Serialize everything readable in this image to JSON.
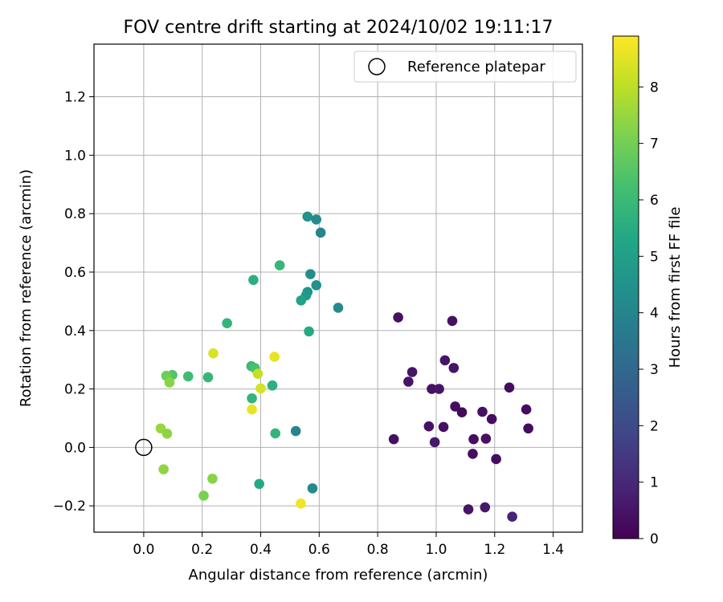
{
  "chart_data": {
    "type": "scatter",
    "title": "FOV centre drift starting at 2024/10/02 19:11:17",
    "xlabel": "Angular distance from reference (arcmin)",
    "ylabel": "Rotation from reference (arcmin)",
    "xlim": [
      -0.17,
      1.5
    ],
    "ylim": [
      -0.29,
      1.38
    ],
    "xticks": [
      0.0,
      0.2,
      0.4,
      0.6,
      0.8,
      1.0,
      1.2,
      1.4
    ],
    "xtick_labels": [
      "0.0",
      "0.2",
      "0.4",
      "0.6",
      "0.8",
      "1.0",
      "1.2",
      "1.4"
    ],
    "yticks": [
      -0.2,
      0.0,
      0.2,
      0.4,
      0.6,
      0.8,
      1.0,
      1.2
    ],
    "ytick_labels": [
      "−0.2",
      "0.0",
      "0.2",
      "0.4",
      "0.6",
      "0.8",
      "1.0",
      "1.2"
    ],
    "grid": true,
    "legend": {
      "placement": "top-right",
      "entries": [
        "Reference platepar"
      ]
    },
    "reference_point": {
      "x": 0.0,
      "y": 0.0,
      "label": "Reference platepar"
    },
    "colorbar": {
      "label": "Hours from first FF file",
      "colormap": "viridis",
      "range": [
        0,
        8.9
      ],
      "ticks": [
        0,
        1,
        2,
        3,
        4,
        5,
        6,
        7,
        8
      ],
      "tick_labels": [
        "0",
        "1",
        "2",
        "3",
        "4",
        "5",
        "6",
        "7",
        "8"
      ]
    },
    "points": [
      {
        "x": 0.87,
        "y": 0.445,
        "c": 0.4
      },
      {
        "x": 1.055,
        "y": 0.433,
        "c": 0.4
      },
      {
        "x": 1.03,
        "y": 0.298,
        "c": 0.5
      },
      {
        "x": 1.06,
        "y": 0.272,
        "c": 0.5
      },
      {
        "x": 0.918,
        "y": 0.258,
        "c": 0.5
      },
      {
        "x": 0.905,
        "y": 0.225,
        "c": 0.5
      },
      {
        "x": 1.25,
        "y": 0.205,
        "c": 0.3
      },
      {
        "x": 0.985,
        "y": 0.2,
        "c": 0.4
      },
      {
        "x": 1.01,
        "y": 0.2,
        "c": 0.5
      },
      {
        "x": 1.065,
        "y": 0.14,
        "c": 0.3
      },
      {
        "x": 1.088,
        "y": 0.12,
        "c": 0.2
      },
      {
        "x": 1.158,
        "y": 0.122,
        "c": 0.4
      },
      {
        "x": 1.308,
        "y": 0.13,
        "c": 0.3
      },
      {
        "x": 1.19,
        "y": 0.097,
        "c": 0.3
      },
      {
        "x": 0.975,
        "y": 0.072,
        "c": 0.4
      },
      {
        "x": 1.025,
        "y": 0.07,
        "c": 0.4
      },
      {
        "x": 1.315,
        "y": 0.065,
        "c": 0.3
      },
      {
        "x": 0.855,
        "y": 0.028,
        "c": 0.4
      },
      {
        "x": 1.128,
        "y": 0.028,
        "c": 0.3
      },
      {
        "x": 1.17,
        "y": 0.03,
        "c": 0.4
      },
      {
        "x": 0.995,
        "y": 0.018,
        "c": 0.6
      },
      {
        "x": 1.125,
        "y": -0.022,
        "c": 0.3
      },
      {
        "x": 1.205,
        "y": -0.04,
        "c": 0.3
      },
      {
        "x": 1.11,
        "y": -0.212,
        "c": 0.5
      },
      {
        "x": 1.167,
        "y": -0.205,
        "c": 0.6
      },
      {
        "x": 1.26,
        "y": -0.237,
        "c": 0.9
      },
      {
        "x": 0.56,
        "y": 0.79,
        "c": 4.5
      },
      {
        "x": 0.59,
        "y": 0.78,
        "c": 4.2
      },
      {
        "x": 0.605,
        "y": 0.735,
        "c": 4.0
      },
      {
        "x": 0.57,
        "y": 0.593,
        "c": 4.3
      },
      {
        "x": 0.59,
        "y": 0.555,
        "c": 4.5
      },
      {
        "x": 0.56,
        "y": 0.532,
        "c": 4.6
      },
      {
        "x": 0.555,
        "y": 0.52,
        "c": 4.8
      },
      {
        "x": 0.538,
        "y": 0.503,
        "c": 5.1
      },
      {
        "x": 0.665,
        "y": 0.478,
        "c": 4.2
      },
      {
        "x": 0.565,
        "y": 0.397,
        "c": 5.4
      },
      {
        "x": 0.52,
        "y": 0.056,
        "c": 4.0
      },
      {
        "x": 0.577,
        "y": -0.14,
        "c": 4.2
      },
      {
        "x": 0.395,
        "y": -0.125,
        "c": 5.4
      },
      {
        "x": 0.465,
        "y": 0.623,
        "c": 5.9
      },
      {
        "x": 0.375,
        "y": 0.573,
        "c": 5.6
      },
      {
        "x": 0.285,
        "y": 0.425,
        "c": 5.8
      },
      {
        "x": 0.368,
        "y": 0.278,
        "c": 6.0
      },
      {
        "x": 0.38,
        "y": 0.272,
        "c": 6.3
      },
      {
        "x": 0.44,
        "y": 0.212,
        "c": 5.6
      },
      {
        "x": 0.37,
        "y": 0.168,
        "c": 5.8
      },
      {
        "x": 0.45,
        "y": 0.048,
        "c": 5.8
      },
      {
        "x": 0.22,
        "y": 0.24,
        "c": 5.9
      },
      {
        "x": 0.152,
        "y": 0.243,
        "c": 6.1
      },
      {
        "x": 0.098,
        "y": 0.248,
        "c": 6.5
      },
      {
        "x": 0.077,
        "y": 0.245,
        "c": 6.9
      },
      {
        "x": 0.088,
        "y": 0.222,
        "c": 7.3
      },
      {
        "x": 0.058,
        "y": 0.065,
        "c": 7.5
      },
      {
        "x": 0.08,
        "y": 0.047,
        "c": 7.4
      },
      {
        "x": 0.068,
        "y": -0.075,
        "c": 7.4
      },
      {
        "x": 0.235,
        "y": -0.107,
        "c": 7.3
      },
      {
        "x": 0.205,
        "y": -0.165,
        "c": 7.1
      },
      {
        "x": 0.238,
        "y": 0.322,
        "c": 8.4
      },
      {
        "x": 0.447,
        "y": 0.31,
        "c": 8.6
      },
      {
        "x": 0.39,
        "y": 0.252,
        "c": 8.1
      },
      {
        "x": 0.4,
        "y": 0.202,
        "c": 8.3
      },
      {
        "x": 0.37,
        "y": 0.13,
        "c": 8.6
      },
      {
        "x": 0.537,
        "y": -0.192,
        "c": 8.7
      }
    ]
  }
}
